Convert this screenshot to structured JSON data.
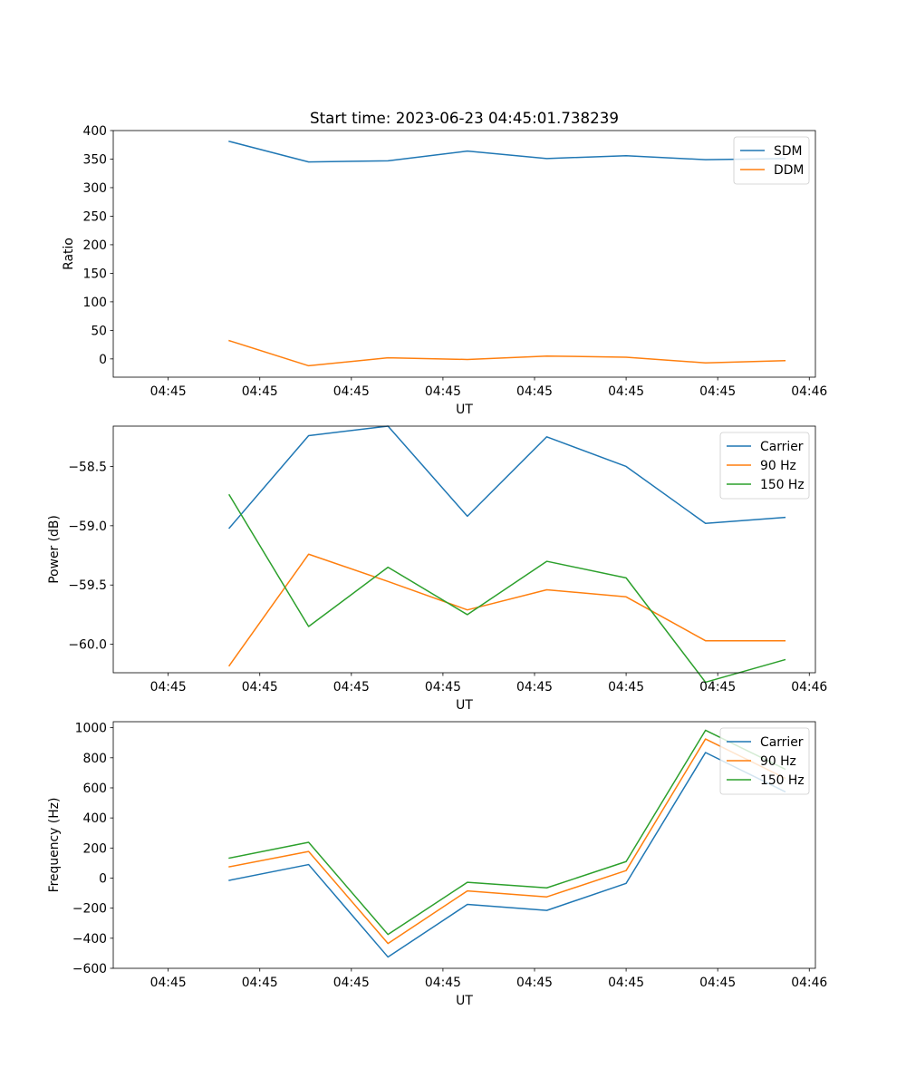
{
  "title": "Start time: 2023-06-23 04:45:01.738239",
  "colors": {
    "c0": "#1f77b4",
    "c1": "#ff7f0e",
    "c2": "#2ca02c"
  },
  "chart_data": [
    {
      "type": "line",
      "xlabel": "UT",
      "ylabel": "Ratio",
      "xticks": [
        "04:45",
        "04:45",
        "04:45",
        "04:45",
        "04:45",
        "04:45",
        "04:45",
        "04:46"
      ],
      "x": [
        1.5,
        2.5,
        3.5,
        4.5,
        5.5,
        6.5,
        7.5,
        8.5
      ],
      "xlim": [
        0,
        9
      ],
      "yticks": [
        "0",
        "50",
        "100",
        "150",
        "200",
        "250",
        "300",
        "350",
        "400"
      ],
      "ytick_values": [
        0,
        50,
        100,
        150,
        200,
        250,
        300,
        350,
        400
      ],
      "ylim": [
        -32,
        400
      ],
      "legend_position": "upper right",
      "series": [
        {
          "name": "SDM",
          "color": "#1f77b4",
          "values": [
            381,
            345,
            347,
            364,
            351,
            356,
            349,
            351
          ]
        },
        {
          "name": "DDM",
          "color": "#ff7f0e",
          "values": [
            32,
            -12,
            2,
            -1,
            5,
            3,
            -7,
            -3
          ]
        }
      ]
    },
    {
      "type": "line",
      "xlabel": "UT",
      "ylabel": "Power (dB)",
      "xticks": [
        "04:45",
        "04:45",
        "04:45",
        "04:45",
        "04:45",
        "04:45",
        "04:45",
        "04:46"
      ],
      "x": [
        1.5,
        2.5,
        3.5,
        4.5,
        5.5,
        6.5,
        7.5,
        8.5
      ],
      "xlim": [
        0,
        9
      ],
      "yticks": [
        "−60.0",
        "−59.5",
        "−59.0",
        "−58.5"
      ],
      "ytick_values": [
        -60.0,
        -59.5,
        -59.0,
        -58.5
      ],
      "ylim": [
        -60.24,
        -58.16
      ],
      "legend_position": "upper right",
      "series": [
        {
          "name": "Carrier",
          "color": "#1f77b4",
          "values": [
            -59.02,
            -58.24,
            -58.16,
            -58.92,
            -58.25,
            -58.5,
            -58.98,
            -58.93
          ]
        },
        {
          "name": "90 Hz",
          "color": "#ff7f0e",
          "values": [
            -60.18,
            -59.24,
            -59.47,
            -59.71,
            -59.54,
            -59.6,
            -59.97,
            -59.97
          ]
        },
        {
          "name": "150 Hz",
          "color": "#2ca02c",
          "values": [
            -58.74,
            -59.85,
            -59.35,
            -59.75,
            -59.3,
            -59.44,
            -60.32,
            -60.13
          ]
        }
      ]
    },
    {
      "type": "line",
      "xlabel": "UT",
      "ylabel": "Frequency (Hz)",
      "xticks": [
        "04:45",
        "04:45",
        "04:45",
        "04:45",
        "04:45",
        "04:45",
        "04:45",
        "04:46"
      ],
      "x": [
        1.5,
        2.5,
        3.5,
        4.5,
        5.5,
        6.5,
        7.5,
        8.5
      ],
      "xlim": [
        0,
        9
      ],
      "yticks": [
        "−600",
        "−400",
        "−200",
        "0",
        "200",
        "400",
        "600",
        "800",
        "1000"
      ],
      "ytick_values": [
        -600,
        -400,
        -200,
        0,
        200,
        400,
        600,
        800,
        1000
      ],
      "ylim": [
        -600,
        1040
      ],
      "legend_position": "upper right",
      "series": [
        {
          "name": "Carrier",
          "color": "#1f77b4",
          "values": [
            -15,
            90,
            -525,
            -175,
            -215,
            -35,
            835,
            575
          ]
        },
        {
          "name": "90 Hz",
          "color": "#ff7f0e",
          "values": [
            75,
            177,
            -435,
            -85,
            -125,
            50,
            925,
            665
          ]
        },
        {
          "name": "150 Hz",
          "color": "#2ca02c",
          "values": [
            133,
            238,
            -375,
            -28,
            -65,
            110,
            983,
            725
          ]
        }
      ]
    }
  ]
}
